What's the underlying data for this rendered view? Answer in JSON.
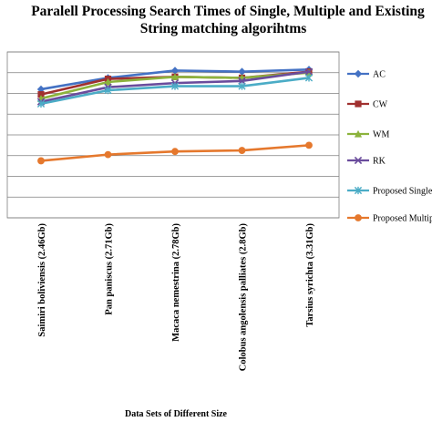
{
  "chart_data": {
    "type": "line",
    "title_line1": "Paralell Processing Search Times of Single, Multiple and Existing",
    "title_line2": "String matching algorihtms",
    "xlabel": "Data Sets of Different Size",
    "ylabel": "",
    "categories": [
      "Saimiri boliviensis (2.46Gb)",
      "Pan paniscus (2.71Gb)",
      "Macaca nemestrina (2.78Gb)",
      "Colobus angolensis palliates (2.8Gb)",
      "Tarsius syrichta (3.31Gb)"
    ],
    "ylim": [
      0,
      8
    ],
    "grid": true,
    "legend_position": "right",
    "series": [
      {
        "name": "AC",
        "color": "#4472c4",
        "marker": "diamond",
        "values": [
          6.2,
          6.75,
          7.1,
          7.05,
          7.15
        ]
      },
      {
        "name": "CW",
        "color": "#a0302f",
        "marker": "square",
        "values": [
          5.95,
          6.7,
          6.8,
          6.75,
          7.05
        ]
      },
      {
        "name": "WM",
        "color": "#8cb33c",
        "marker": "triangle",
        "values": [
          5.75,
          6.55,
          6.8,
          6.75,
          7.0
        ]
      },
      {
        "name": "RK",
        "color": "#6a4c9c",
        "marker": "x",
        "values": [
          5.6,
          6.3,
          6.5,
          6.6,
          7.05
        ]
      },
      {
        "name": "Proposed Single",
        "color": "#4bacc6",
        "marker": "star",
        "values": [
          5.5,
          6.15,
          6.35,
          6.35,
          6.75
        ]
      },
      {
        "name": "Proposed Multiple",
        "color": "#e5782d",
        "marker": "circle",
        "values": [
          2.75,
          3.05,
          3.2,
          3.25,
          3.5
        ]
      }
    ]
  }
}
